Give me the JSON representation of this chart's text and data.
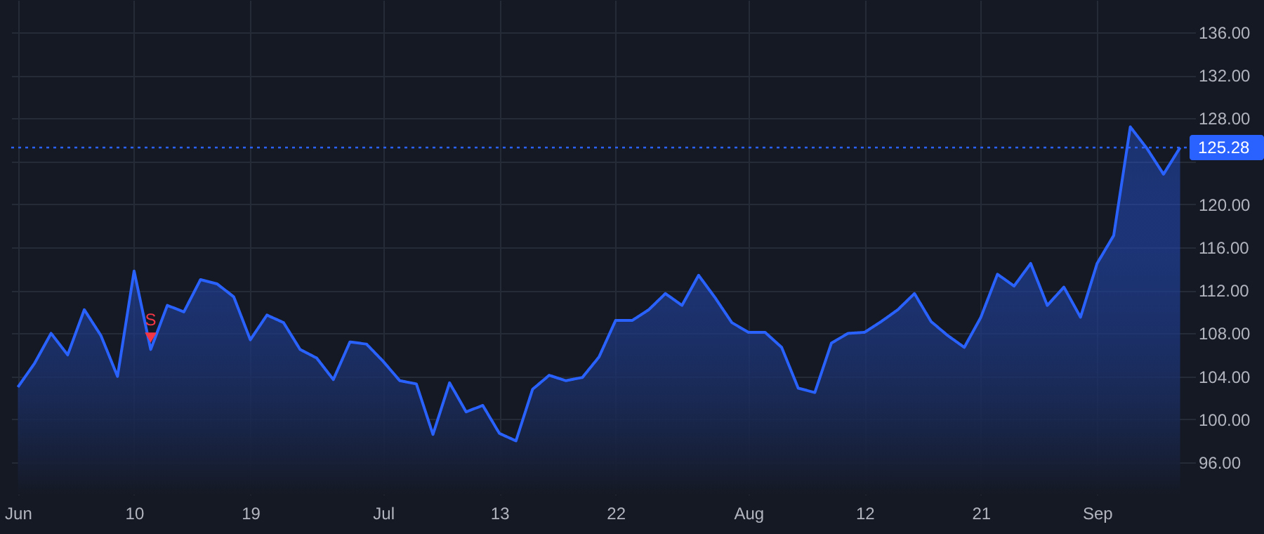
{
  "chart_data": {
    "type": "area",
    "categories": [
      "Jun",
      null,
      null,
      null,
      null,
      null,
      null,
      "10",
      null,
      null,
      null,
      null,
      null,
      null,
      "19",
      null,
      null,
      null,
      null,
      null,
      null,
      null,
      "Jul",
      null,
      null,
      null,
      null,
      null,
      null,
      "13",
      null,
      null,
      null,
      null,
      null,
      null,
      "22",
      null,
      null,
      null,
      null,
      null,
      null,
      null,
      "Aug",
      null,
      null,
      null,
      null,
      null,
      null,
      "12",
      null,
      null,
      null,
      null,
      null,
      null,
      "21",
      null,
      null,
      null,
      null,
      null,
      null,
      "Sep",
      null,
      null,
      null,
      null,
      null
    ],
    "series": [
      {
        "color": "#2962ff",
        "values": [
          103.0,
          105.2,
          108.0,
          106.0,
          110.2,
          107.8,
          104.0,
          113.8,
          106.5,
          110.6,
          110.0,
          113.0,
          112.6,
          111.4,
          107.4,
          109.7,
          109.0,
          106.5,
          105.7,
          103.7,
          107.2,
          107.0,
          105.4,
          103.6,
          103.3,
          98.6,
          103.4,
          100.7,
          101.3,
          98.7,
          98.0,
          102.8,
          104.1,
          103.6,
          103.9,
          105.8,
          109.2,
          109.2,
          110.2,
          111.7,
          110.6,
          113.4,
          111.3,
          109.0,
          108.1,
          108.1,
          106.7,
          102.9,
          102.5,
          107.1,
          108.0,
          108.1,
          109.1,
          110.2,
          111.7,
          109.1,
          107.8,
          106.7,
          109.5,
          113.5,
          112.4,
          114.5,
          110.6,
          112.3,
          109.5,
          114.5,
          117.1,
          127.2,
          125.2,
          122.8,
          125.28
        ]
      },
      {
        "name": "S",
        "type": "scatter",
        "marker": "triangle",
        "color": "#f23645",
        "values": [
          null,
          null,
          null,
          null,
          null,
          null,
          null,
          null,
          107.6,
          null,
          null,
          null,
          null,
          null,
          null,
          null,
          null,
          null,
          null,
          null,
          null,
          null,
          null,
          null,
          null,
          null,
          null,
          null,
          null,
          null,
          null,
          null,
          null,
          null,
          null,
          null,
          null,
          null,
          null,
          null,
          null,
          null,
          null,
          null,
          null,
          null,
          null,
          null,
          null,
          null,
          null,
          null,
          null,
          null,
          null,
          null,
          null,
          null,
          null,
          null,
          null,
          null,
          null,
          null,
          null,
          null,
          null,
          null,
          null,
          null,
          null
        ]
      }
    ],
    "ylim": [
      93,
      139
    ],
    "yticks": [
      {
        "value": 96,
        "label": "96.00"
      },
      {
        "value": 100,
        "label": "100.00"
      },
      {
        "value": 104,
        "label": "104.00"
      },
      {
        "value": 108,
        "label": "108.00"
      },
      {
        "value": 112,
        "label": "112.00"
      },
      {
        "value": 116,
        "label": "116.00"
      },
      {
        "value": 120,
        "label": "120.00"
      },
      {
        "value": 124,
        "label": null
      },
      {
        "value": 128,
        "label": "128.00"
      },
      {
        "value": 132,
        "label": "132.00"
      },
      {
        "value": 136,
        "label": "136.00"
      }
    ],
    "ref_lines": [
      {
        "axis": "y",
        "value": 125.28,
        "label": "125.28",
        "color": "#2962ff",
        "line_style": "dotted"
      }
    ],
    "grid": true,
    "line_style": "solid",
    "marker": "none"
  }
}
